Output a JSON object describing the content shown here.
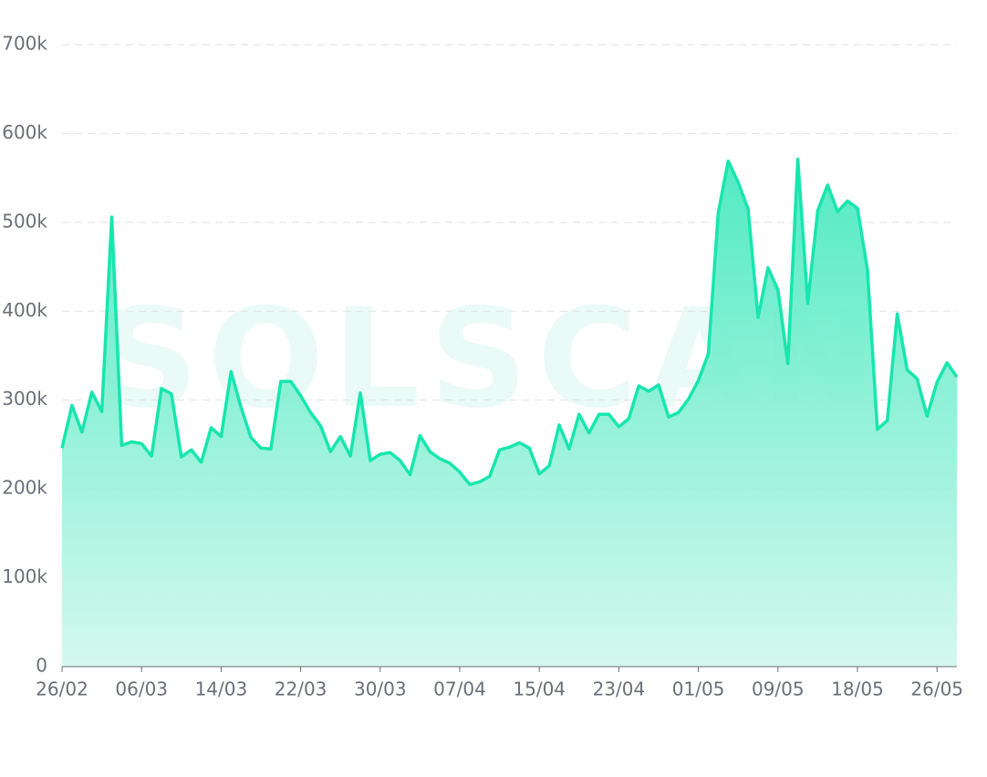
{
  "chart_data": {
    "type": "area",
    "watermark": "SOLSCAN",
    "categories": [
      "26/02",
      null,
      null,
      null,
      null,
      null,
      null,
      null,
      "06/03",
      null,
      null,
      null,
      null,
      null,
      null,
      null,
      "14/03",
      null,
      null,
      null,
      null,
      null,
      null,
      null,
      "22/03",
      null,
      null,
      null,
      null,
      null,
      null,
      null,
      "30/03",
      null,
      null,
      null,
      null,
      null,
      null,
      null,
      "07/04",
      null,
      null,
      null,
      null,
      null,
      null,
      null,
      "15/04",
      null,
      null,
      null,
      null,
      null,
      null,
      null,
      "23/04",
      null,
      null,
      null,
      null,
      null,
      null,
      null,
      "01/05",
      null,
      null,
      null,
      null,
      null,
      null,
      null,
      "09/05",
      null,
      null,
      null,
      null,
      null,
      null,
      null,
      "18/05",
      null,
      null,
      null,
      null,
      null,
      null,
      null,
      "26/05",
      null,
      null
    ],
    "values": [
      246000,
      294000,
      264000,
      309000,
      287000,
      506000,
      249000,
      253000,
      251000,
      237000,
      313000,
      307000,
      236000,
      244000,
      230000,
      269000,
      259000,
      332000,
      292000,
      258000,
      246000,
      245000,
      321000,
      321000,
      305000,
      286000,
      271000,
      242000,
      259000,
      237000,
      308000,
      232000,
      239000,
      241000,
      232000,
      216000,
      260000,
      242000,
      234000,
      229000,
      219000,
      205000,
      208000,
      214000,
      244000,
      247000,
      252000,
      246000,
      217000,
      226000,
      272000,
      245000,
      284000,
      263000,
      284000,
      284000,
      270000,
      279000,
      316000,
      310000,
      317000,
      281000,
      286000,
      301000,
      322000,
      352000,
      511000,
      569000,
      545000,
      515000,
      393000,
      449000,
      424000,
      341000,
      571000,
      409000,
      513000,
      542000,
      512000,
      524000,
      516000,
      447000,
      267000,
      277000,
      397000,
      334000,
      324000,
      282000,
      320000,
      342000,
      326000
    ],
    "color": "#17e6ae",
    "ylim": [
      0,
      700000
    ],
    "yticks": [
      0,
      {
        "value": 100000,
        "label": "100k"
      },
      {
        "value": 200000,
        "label": "200k"
      },
      {
        "value": 300000,
        "label": "300k"
      },
      {
        "value": 400000,
        "label": "400k"
      },
      {
        "value": 500000,
        "label": "500k"
      },
      {
        "value": 600000,
        "label": "600k"
      },
      {
        "value": 700000,
        "label": "700k"
      }
    ],
    "grid": true
  }
}
